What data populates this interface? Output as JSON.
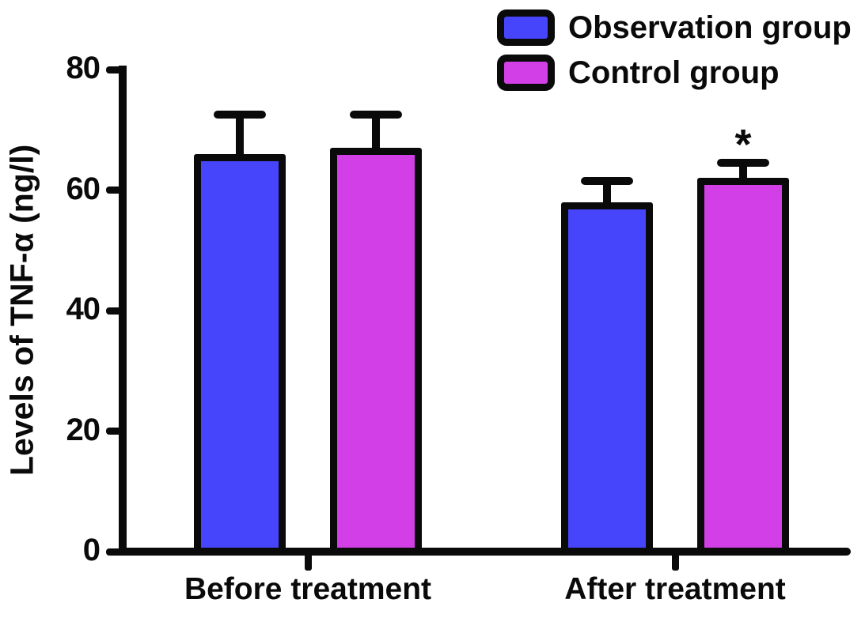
{
  "chart_data": {
    "type": "bar",
    "title": "",
    "xlabel": "",
    "ylabel": "Levels of TNF-α (ng/l)",
    "ylim": [
      0,
      80
    ],
    "yticks": [
      0,
      20,
      40,
      60,
      80
    ],
    "grid": false,
    "legend_position": "top-right",
    "error_bars": "upper SD",
    "categories": [
      "Before treatment",
      "After treatment"
    ],
    "series": [
      {
        "name": "Observation group",
        "color": "#4645FC",
        "values": [
          66,
          58
        ],
        "errors": [
          6.5,
          3.5
        ]
      },
      {
        "name": "Control group",
        "color": "#D33FE6",
        "values": [
          67,
          62
        ],
        "errors": [
          5.5,
          2.5
        ]
      }
    ],
    "annotations": [
      {
        "text": "*",
        "category": "After treatment",
        "series": "Control group"
      }
    ],
    "axis_color": "#0a0a0a",
    "background_color": "#ffffff"
  }
}
